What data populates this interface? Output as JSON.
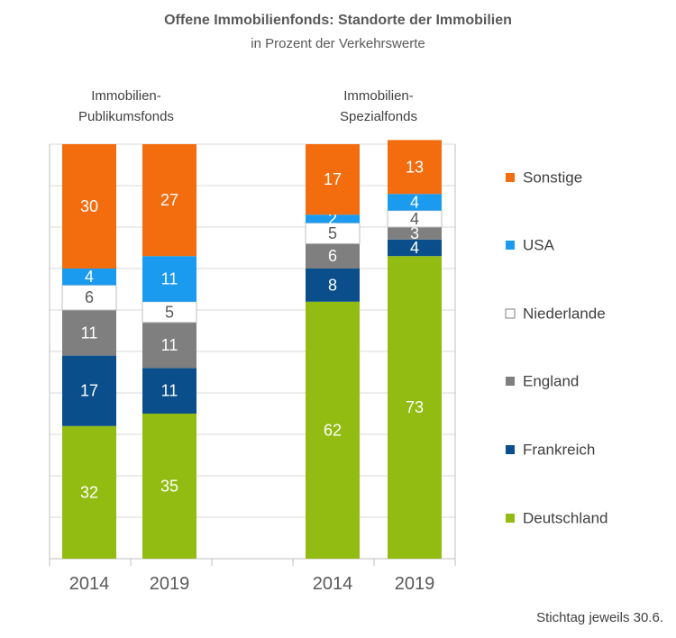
{
  "chart_data": {
    "type": "bar",
    "stacked": true,
    "title": "Offene Immobilienfonds: Standorte der Immobilien",
    "subtitle": "in Prozent der Verkehrswerte",
    "groups": [
      {
        "label_lines": [
          "Immobilien-",
          "Publikumsfonds"
        ],
        "years": [
          "2014",
          "2019"
        ]
      },
      {
        "label_lines": [
          "Immobilien-",
          "Spezialfonds"
        ],
        "years": [
          "2014",
          "2019"
        ]
      }
    ],
    "categories": [
      "2014",
      "2019",
      "2014",
      "2019"
    ],
    "series": [
      {
        "name": "Deutschland",
        "color": "#92bc12",
        "label_color": "#ffffff",
        "values": [
          32,
          35,
          62,
          73
        ]
      },
      {
        "name": "Frankreich",
        "color": "#0a4f8c",
        "label_color": "#ffffff",
        "values": [
          17,
          11,
          8,
          4
        ]
      },
      {
        "name": "England",
        "color": "#7f7f7f",
        "label_color": "#ffffff",
        "values": [
          11,
          11,
          6,
          3
        ]
      },
      {
        "name": "Niederlande",
        "color": "#ffffff",
        "label_color": "#595959",
        "values": [
          6,
          5,
          5,
          4
        ]
      },
      {
        "name": "USA",
        "color": "#1a9bf0",
        "label_color": "#ffffff",
        "values": [
          4,
          11,
          2,
          4
        ]
      },
      {
        "name": "Sonstige",
        "color": "#f36c0e",
        "label_color": "#ffffff",
        "values": [
          30,
          27,
          17,
          13
        ]
      }
    ],
    "legend_order": [
      "Sonstige",
      "USA",
      "Niederlande",
      "England",
      "Frankreich",
      "Deutschland"
    ],
    "ylim": [
      0,
      100
    ],
    "grid": true,
    "legend_position": "right"
  },
  "footnote": "Stichtag jeweils 30.6."
}
